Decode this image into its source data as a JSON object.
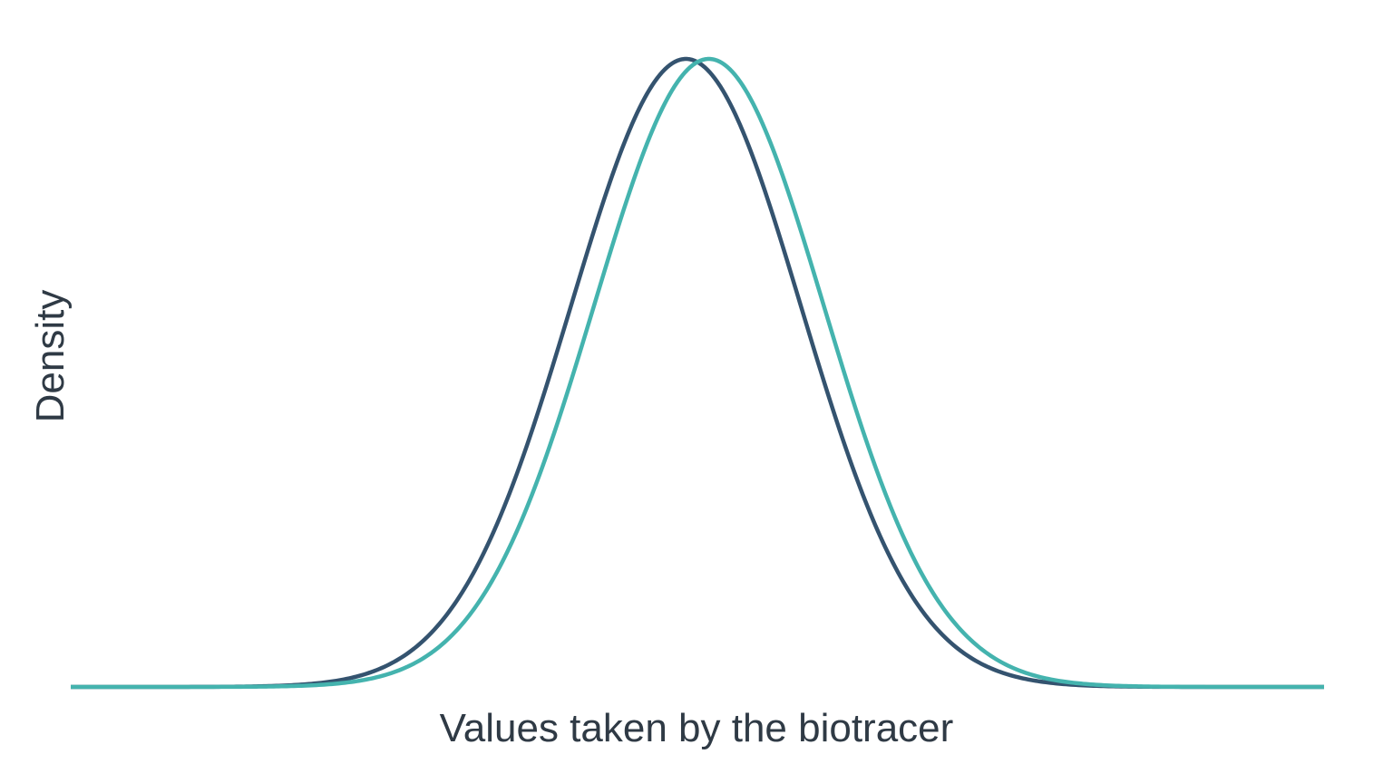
{
  "chart_data": {
    "type": "line",
    "title": "",
    "xlabel": "Values taken by the biotracer",
    "ylabel": "Density",
    "xlim": [
      -5.45,
      5.45
    ],
    "ylim": [
      0,
      1
    ],
    "grid": false,
    "legend": "none",
    "x_ticks_shown": false,
    "y_ticks_shown": false,
    "series": [
      {
        "color": "#34536f",
        "distribution": "normal",
        "mean": -0.1,
        "sd": 1.0
      },
      {
        "color": "#44b3ae",
        "distribution": "normal",
        "mean": 0.1,
        "sd": 1.0
      }
    ]
  }
}
